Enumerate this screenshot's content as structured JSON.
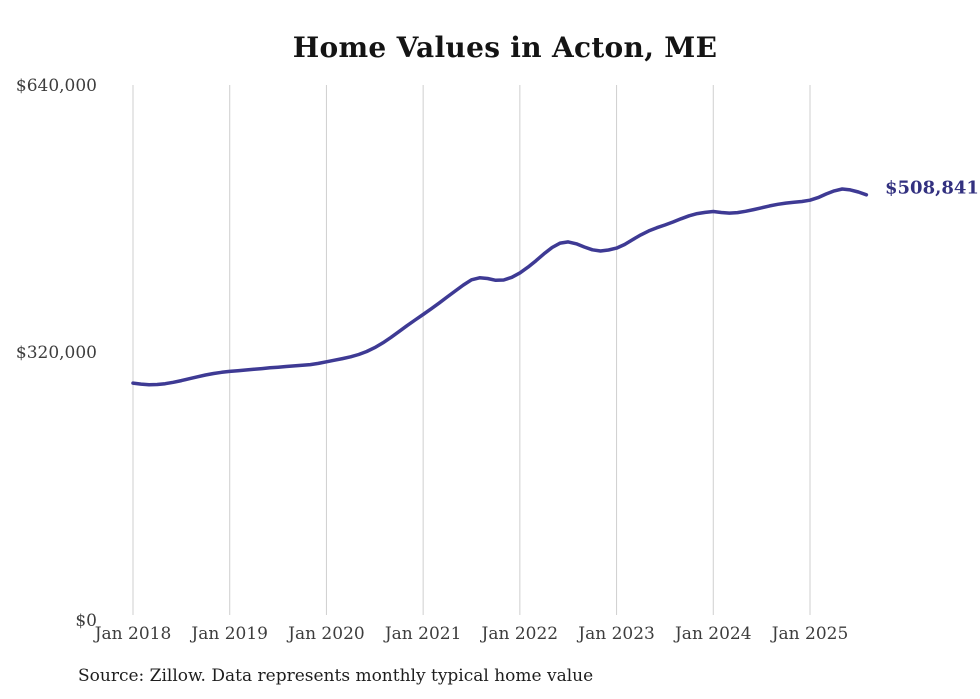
{
  "page": {
    "source_note": "Source: Zillow. Data represents monthly typical home value"
  },
  "chart_data": {
    "type": "line",
    "title": "Home Values in Acton, ME",
    "xlabel": "",
    "ylabel": "",
    "ylim": [
      0,
      640000
    ],
    "grid": "vertical-only",
    "legend": "none",
    "line_color": "#3e3a94",
    "gridline_color": "#cfcfcf",
    "end_label_color": "#333180",
    "end_value": 508841,
    "end_value_label": "$508,841",
    "y_tick_values": [
      640000,
      320000,
      0
    ],
    "y_tick_labels": [
      "$640,000",
      "$320,000",
      "$0"
    ],
    "x_tick_labels": [
      "Jan 2018",
      "Jan 2019",
      "Jan 2020",
      "Jan 2021",
      "Jan 2022",
      "Jan 2023",
      "Jan 2024",
      "Jan 2025"
    ],
    "series": [
      {
        "name": "Monthly typical home value",
        "x_months": [
          "2018-01",
          "2018-02",
          "2018-03",
          "2018-04",
          "2018-05",
          "2018-06",
          "2018-07",
          "2018-08",
          "2018-09",
          "2018-10",
          "2018-11",
          "2018-12",
          "2019-01",
          "2019-02",
          "2019-03",
          "2019-04",
          "2019-05",
          "2019-06",
          "2019-07",
          "2019-08",
          "2019-09",
          "2019-10",
          "2019-11",
          "2019-12",
          "2020-01",
          "2020-02",
          "2020-03",
          "2020-04",
          "2020-05",
          "2020-06",
          "2020-07",
          "2020-08",
          "2020-09",
          "2020-10",
          "2020-11",
          "2020-12",
          "2021-01",
          "2021-02",
          "2021-03",
          "2021-04",
          "2021-05",
          "2021-06",
          "2021-07",
          "2021-08",
          "2021-09",
          "2021-10",
          "2021-11",
          "2021-12",
          "2022-01",
          "2022-02",
          "2022-03",
          "2022-04",
          "2022-05",
          "2022-06",
          "2022-07",
          "2022-08",
          "2022-09",
          "2022-10",
          "2022-11",
          "2022-12",
          "2023-01",
          "2023-02",
          "2023-03",
          "2023-04",
          "2023-05",
          "2023-06",
          "2023-07",
          "2023-08",
          "2023-09",
          "2023-10",
          "2023-11",
          "2023-12",
          "2024-01",
          "2024-02",
          "2024-03",
          "2024-04",
          "2024-05",
          "2024-06",
          "2024-07",
          "2024-08",
          "2024-09",
          "2024-10",
          "2024-11",
          "2024-12",
          "2025-01",
          "2025-02",
          "2025-03",
          "2025-04",
          "2025-05",
          "2025-06",
          "2025-07",
          "2025-08"
        ],
        "values": [
          284000,
          282900,
          282200,
          282400,
          283400,
          285000,
          287100,
          289300,
          291600,
          293700,
          295500,
          296900,
          298000,
          298900,
          299700,
          300500,
          301400,
          302300,
          303100,
          303900,
          304600,
          305300,
          306200,
          307600,
          309500,
          311400,
          313300,
          315500,
          318200,
          321800,
          326400,
          332000,
          338600,
          345600,
          352600,
          359400,
          366000,
          372800,
          379800,
          387000,
          394200,
          401200,
          407400,
          409800,
          408900,
          406800,
          407200,
          410400,
          415600,
          422400,
          430200,
          438400,
          446000,
          451200,
          452600,
          450400,
          446600,
          443200,
          441800,
          443000,
          445300,
          449600,
          455400,
          461000,
          465800,
          469600,
          472800,
          476400,
          480200,
          483800,
          486400,
          487900,
          488900,
          487800,
          487000,
          487700,
          489200,
          491200,
          493400,
          495600,
          497600,
          499000,
          499900,
          500900,
          502400,
          505600,
          509800,
          513600,
          515800,
          514800,
          512200,
          508841
        ]
      }
    ]
  }
}
